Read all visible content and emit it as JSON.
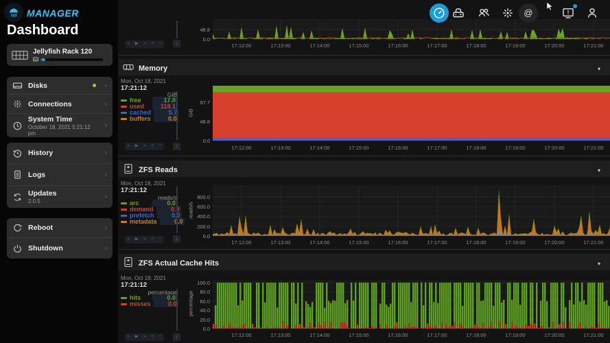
{
  "app": {
    "brand": "MANAGER",
    "page_title": "Dashboard"
  },
  "topbar": {
    "icons": [
      {
        "name": "dashboard-gauge",
        "active": true
      },
      {
        "name": "disks"
      },
      {
        "name": "users"
      },
      {
        "name": "connections-hub"
      },
      {
        "name": "support-at",
        "hovered": true
      },
      {
        "name": "system-alerts",
        "badge": true
      },
      {
        "name": "account"
      }
    ]
  },
  "sidebar": {
    "system_card": {
      "title": "Jellyfish Rack 120"
    },
    "groups": [
      {
        "items": [
          {
            "label": "Disks",
            "status_dot_color": "#A9C72B"
          },
          {
            "label": "Connections"
          },
          {
            "label": "System Time",
            "subtitle": "October 18, 2021 5:21:12 pm"
          }
        ]
      },
      {
        "items": [
          {
            "label": "History"
          },
          {
            "label": "Logs"
          },
          {
            "label": "Updates",
            "subtitle": "2.0.5"
          }
        ]
      },
      {
        "items": [
          {
            "label": "Reboot"
          },
          {
            "label": "Shutdown"
          }
        ]
      }
    ]
  },
  "player_controls": [
    "«",
    "▶",
    "»",
    "+",
    "−"
  ],
  "collapse_caret": "▾",
  "chevron": "›",
  "slider_thumb_glyph": "↓",
  "time_axis": [
    "17:12:00",
    "17:13:00",
    "17:14:00",
    "17:15:00",
    "17:16:00",
    "17:17:00",
    "17:18:00",
    "17:19:00",
    "17:20:00",
    "17:21:00"
  ],
  "panels": {
    "memory": {
      "title": "Memory",
      "date": "Mon, Oct 18, 2021",
      "time": "17:21:12",
      "unit": "GiB",
      "legend": [
        {
          "label": "free",
          "value": "17.0",
          "color": "#69A224"
        },
        {
          "label": "used",
          "value": "118.1",
          "color": "#D6402C"
        },
        {
          "label": "cached",
          "value": "5.7",
          "color": "#4066CC"
        },
        {
          "label": "buffers",
          "value": "0.0",
          "color": "#CF7D22"
        }
      ]
    },
    "zfs_reads": {
      "title": "ZFS Reads",
      "date": "Mon, Oct 18, 2021",
      "time": "17:21:12",
      "unit": "reads/s",
      "legend": [
        {
          "label": "arc",
          "value": "0.0",
          "color": "#69A224"
        },
        {
          "label": "demand",
          "value": "0.0",
          "color": "#D6402C"
        },
        {
          "label": "prefetch",
          "value": "0.0",
          "color": "#4066CC"
        },
        {
          "label": "metadata",
          "value": "0.0",
          "color": "#CF7D22"
        }
      ]
    },
    "cache_hits": {
      "title": "ZFS Actual Cache Hits",
      "date": "Mon, Oct 18, 2021",
      "time": "17:21:12",
      "unit": "percentage",
      "legend": [
        {
          "label": "hits",
          "value": "0.0",
          "color": "#69A224"
        },
        {
          "label": "misses",
          "value": "0.0",
          "color": "#D6402C"
        }
      ]
    }
  },
  "chart_data": [
    {
      "id": "top_partial",
      "type": "area",
      "ylabel": "",
      "yticks": [
        "48.8",
        "0.0"
      ],
      "ymax": 101,
      "series": [
        {
          "name": "green-spiky",
          "color": "#69A224"
        },
        {
          "name": "red-baseline",
          "color": "#C0392B"
        }
      ],
      "x_labels_from": "time_axis",
      "grid": true
    },
    {
      "id": "memory",
      "type": "area",
      "ylabel": "GiB",
      "yticks": [
        "97.7",
        "48.8",
        "0.0"
      ],
      "ymax": 140.8,
      "stack": [
        {
          "name": "cached",
          "value": 5.7,
          "color": "#4066CC"
        },
        {
          "name": "used",
          "value": 118.1,
          "color": "#D6402C"
        },
        {
          "name": "free",
          "value": 17.0,
          "color": "#69A224"
        },
        {
          "name": "buffers",
          "value": 0.0,
          "color": "#CF7D22"
        }
      ],
      "x_labels_from": "time_axis",
      "grid": true
    },
    {
      "id": "zfs_reads",
      "type": "area",
      "ylabel": "reads/s",
      "yticks": [
        "800.0",
        "600.0",
        "400.0",
        "200.0",
        "0.0"
      ],
      "ymax": 1030,
      "peak": 950,
      "series": [
        {
          "name": "arc",
          "color": "#69A224"
        },
        {
          "name": "demand",
          "color": "#C8731D"
        },
        {
          "name": "metadata",
          "color": "#8A8A8A"
        },
        {
          "name": "prefetch",
          "color": "#4066CC"
        }
      ],
      "x_labels_from": "time_axis",
      "grid": true
    },
    {
      "id": "cache_hits",
      "type": "bars",
      "ylabel": "percentage",
      "yticks": [
        "100.0",
        "80.0",
        "60.0",
        "40.0",
        "20.0",
        "0.0"
      ],
      "ymax": 106,
      "series": [
        {
          "name": "hits",
          "color": "#5DA11E"
        },
        {
          "name": "misses",
          "color": "#CC3A28"
        }
      ],
      "x_labels_from": "time_axis",
      "grid": true
    }
  ]
}
